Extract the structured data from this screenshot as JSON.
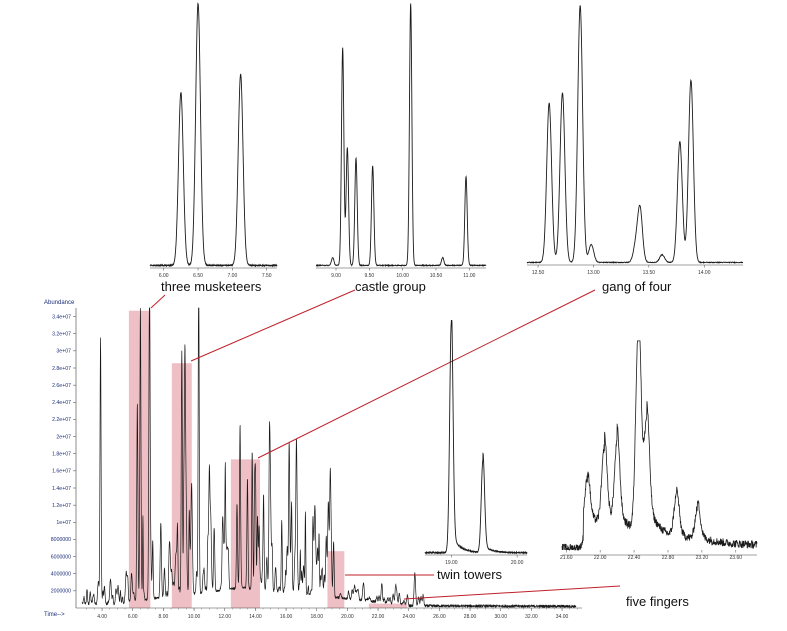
{
  "main_axis": {
    "ylabel": "Abundance",
    "xlabel": "Time-->",
    "y_ticks": [
      "2000000",
      "4000000",
      "6000000",
      "8000000",
      "1e+07",
      "1.2e+07",
      "1.4e+07",
      "1.6e+07",
      "1.8e+07",
      "2e+07",
      "2.2e+07",
      "2.4e+07",
      "2.6e+07",
      "2.8e+07",
      "3e+07",
      "3.2e+07",
      "3.4e+07"
    ],
    "x_ticks": [
      "4.00",
      "6.00",
      "8.00",
      "10.00",
      "12.00",
      "14.00",
      "16.00",
      "18.00",
      "20.00",
      "22.00",
      "24.00",
      "26.00",
      "28.00",
      "30.00",
      "32.00",
      "34.00"
    ]
  },
  "labels": {
    "three": "three musketeers",
    "castle": "castle group",
    "gang": "gang of four",
    "twin": "twin towers",
    "five": "five fingers"
  },
  "insets": {
    "three": {
      "ticks": [
        "6.00",
        "6.50",
        "7.00",
        "7.50"
      ]
    },
    "castle": {
      "ticks": [
        "9.00",
        "9.50",
        "10.00",
        "10.50",
        "11.00"
      ]
    },
    "gang": {
      "ticks": [
        "12.50",
        "13.00",
        "13.50",
        "14.00"
      ]
    },
    "twin": {
      "ticks": [
        "19.00",
        "20.00"
      ]
    },
    "five": {
      "ticks": [
        "21.60",
        "22.00",
        "22.40",
        "22.80",
        "23.20",
        "23.60"
      ]
    }
  },
  "colors": {
    "trace": "#1a1a1a",
    "highlight": "#e8aab0",
    "connector": "#c0202a",
    "axis_text": "#1c2f7a"
  },
  "chart_data": [
    {
      "type": "line",
      "title": "",
      "xlabel": "Time-->",
      "ylabel": "Abundance",
      "xlim": [
        2.3,
        35.3
      ],
      "ylim": [
        0,
        35000000
      ],
      "peaks": [
        {
          "x": 3.9,
          "y": 29500000
        },
        {
          "x": 6.3,
          "y": 22000000
        },
        {
          "x": 6.5,
          "y": 34000000
        },
        {
          "x": 7.1,
          "y": 26000000
        },
        {
          "x": 9.2,
          "y": 28000000
        },
        {
          "x": 9.4,
          "y": 20000000
        },
        {
          "x": 10.3,
          "y": 28000000
        },
        {
          "x": 11.0,
          "y": 13000000
        },
        {
          "x": 12.8,
          "y": 10000000
        },
        {
          "x": 13.0,
          "y": 17000000
        },
        {
          "x": 13.8,
          "y": 12000000
        },
        {
          "x": 14.0,
          "y": 14000000
        },
        {
          "x": 19.1,
          "y": 6500000
        },
        {
          "x": 22.4,
          "y": 500000
        }
      ],
      "highlights": [
        {
          "name": "three musketeers",
          "x": [
            5.75,
            7.15
          ]
        },
        {
          "name": "castle group",
          "x": [
            8.55,
            9.85
          ]
        },
        {
          "name": "gang of four",
          "x": [
            12.4,
            14.3
          ]
        },
        {
          "name": "twin towers",
          "x": [
            18.7,
            19.8
          ]
        },
        {
          "name": "five fingers",
          "x": [
            21.4,
            23.9
          ]
        }
      ]
    },
    {
      "type": "line",
      "name": "three musketeers",
      "xlim": [
        5.8,
        7.65
      ],
      "peaks": [
        {
          "x": 6.25,
          "y": 0.66
        },
        {
          "x": 6.5,
          "y": 1.0
        },
        {
          "x": 7.12,
          "y": 0.73
        }
      ]
    },
    {
      "type": "line",
      "name": "castle group",
      "xlim": [
        8.7,
        11.25
      ],
      "peaks": [
        {
          "x": 8.95,
          "y": 0.03
        },
        {
          "x": 9.1,
          "y": 0.83
        },
        {
          "x": 9.17,
          "y": 0.45
        },
        {
          "x": 9.3,
          "y": 0.41
        },
        {
          "x": 9.55,
          "y": 0.38
        },
        {
          "x": 10.12,
          "y": 1.0
        },
        {
          "x": 10.6,
          "y": 0.03
        },
        {
          "x": 10.95,
          "y": 0.34
        }
      ]
    },
    {
      "type": "line",
      "name": "gang of four",
      "xlim": [
        12.4,
        14.35
      ],
      "peaks": [
        {
          "x": 12.6,
          "y": 0.62
        },
        {
          "x": 12.72,
          "y": 0.66
        },
        {
          "x": 12.88,
          "y": 1.0
        },
        {
          "x": 12.98,
          "y": 0.07
        },
        {
          "x": 13.38,
          "y": 0.06
        },
        {
          "x": 13.42,
          "y": 0.21
        },
        {
          "x": 13.62,
          "y": 0.03
        },
        {
          "x": 13.78,
          "y": 0.47
        },
        {
          "x": 13.88,
          "y": 0.71
        }
      ]
    },
    {
      "type": "line",
      "name": "twin towers",
      "xlim": [
        18.6,
        20.15
      ],
      "peaks": [
        {
          "x": 19.0,
          "y": 1.0
        },
        {
          "x": 19.48,
          "y": 0.4
        }
      ]
    },
    {
      "type": "line",
      "name": "five fingers",
      "xlim": [
        21.55,
        23.85
      ],
      "peaks": [
        {
          "x": 21.85,
          "y": 0.22
        },
        {
          "x": 22.05,
          "y": 0.37
        },
        {
          "x": 22.2,
          "y": 0.4
        },
        {
          "x": 22.45,
          "y": 1.0
        },
        {
          "x": 22.55,
          "y": 0.48
        },
        {
          "x": 22.9,
          "y": 0.2
        },
        {
          "x": 23.15,
          "y": 0.16
        }
      ]
    }
  ]
}
